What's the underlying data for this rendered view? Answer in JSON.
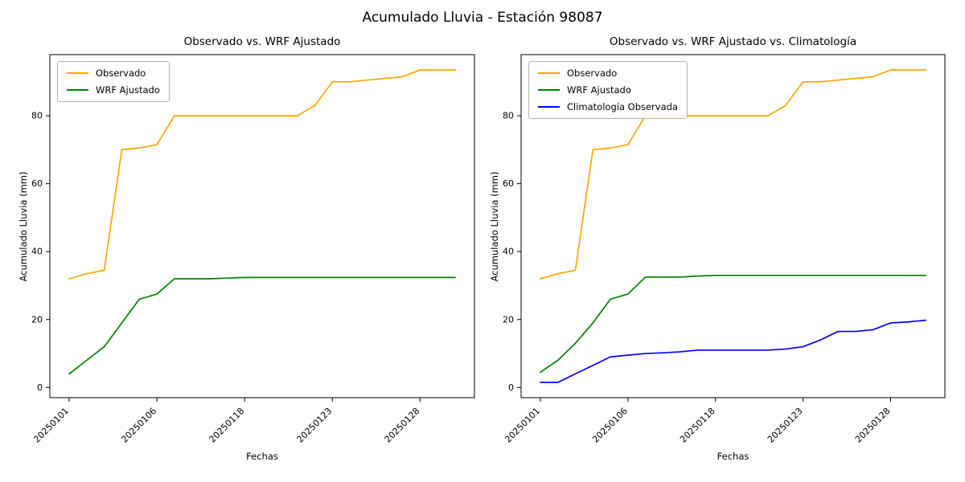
{
  "page": {
    "suptitle": "Acumulado Lluvia - Estación 98087"
  },
  "chart_data": [
    {
      "type": "line",
      "title": "Observado vs. WRF Ajustado",
      "xlabel": "Fechas",
      "ylabel": "Acumulado Lluvia (mm)",
      "legend_position": "upper left",
      "grid": false,
      "x_tick_labels": [
        "20250101",
        "20250106",
        "20250118",
        "20250123",
        "20250128"
      ],
      "x_tick_positions": [
        0,
        5,
        10,
        15,
        20
      ],
      "y_ticks": [
        0,
        20,
        40,
        60,
        80
      ],
      "xlim": [
        -1.1,
        23.1
      ],
      "ylim": [
        -3,
        98
      ],
      "series": [
        {
          "name": "Observado",
          "color": "#FFA500",
          "values": [
            32,
            33.5,
            34.5,
            70,
            70.5,
            71.5,
            80,
            80,
            80,
            80,
            80,
            80,
            80,
            80,
            83,
            90,
            90,
            90.5,
            91,
            91.5,
            93.5,
            93.5,
            93.5
          ]
        },
        {
          "name": "WRF Ajustado",
          "color": "#008000",
          "values": [
            4,
            8,
            12,
            19,
            26,
            27.5,
            32,
            32,
            32,
            32.2,
            32.4,
            32.4,
            32.4,
            32.4,
            32.4,
            32.4,
            32.4,
            32.4,
            32.4,
            32.4,
            32.4,
            32.4,
            32.4
          ]
        }
      ]
    },
    {
      "type": "line",
      "title": "Observado vs. WRF Ajustado vs. Climatología",
      "xlabel": "Fechas",
      "ylabel": "Acumulado Lluvia (mm)",
      "legend_position": "upper left",
      "grid": false,
      "x_tick_labels": [
        "20250101",
        "20250106",
        "20250118",
        "20250123",
        "20250128"
      ],
      "x_tick_positions": [
        0,
        5,
        10,
        15,
        20
      ],
      "y_ticks": [
        0,
        20,
        40,
        60,
        80
      ],
      "xlim": [
        -1.1,
        23.1
      ],
      "ylim": [
        -3,
        98
      ],
      "series": [
        {
          "name": "Observado",
          "color": "#FFA500",
          "values": [
            32,
            33.5,
            34.5,
            70,
            70.5,
            71.5,
            80,
            80,
            80,
            80,
            80,
            80,
            80,
            80,
            83,
            90,
            90,
            90.5,
            91,
            91.5,
            93.5,
            93.5,
            93.5
          ]
        },
        {
          "name": "WRF Ajustado",
          "color": "#008000",
          "values": [
            4.5,
            8,
            13,
            19,
            26,
            27.5,
            32.5,
            32.5,
            32.5,
            32.8,
            33,
            33,
            33,
            33,
            33,
            33,
            33,
            33,
            33,
            33,
            33,
            33,
            33
          ]
        },
        {
          "name": "Climatología Observada",
          "color": "#0000FF",
          "values": [
            1.5,
            1.5,
            4,
            6.5,
            9,
            9.5,
            10,
            10.2,
            10.5,
            11,
            11,
            11,
            11,
            11,
            11.3,
            12,
            14,
            16.5,
            16.5,
            17,
            19,
            19.3,
            19.8
          ]
        }
      ]
    }
  ]
}
